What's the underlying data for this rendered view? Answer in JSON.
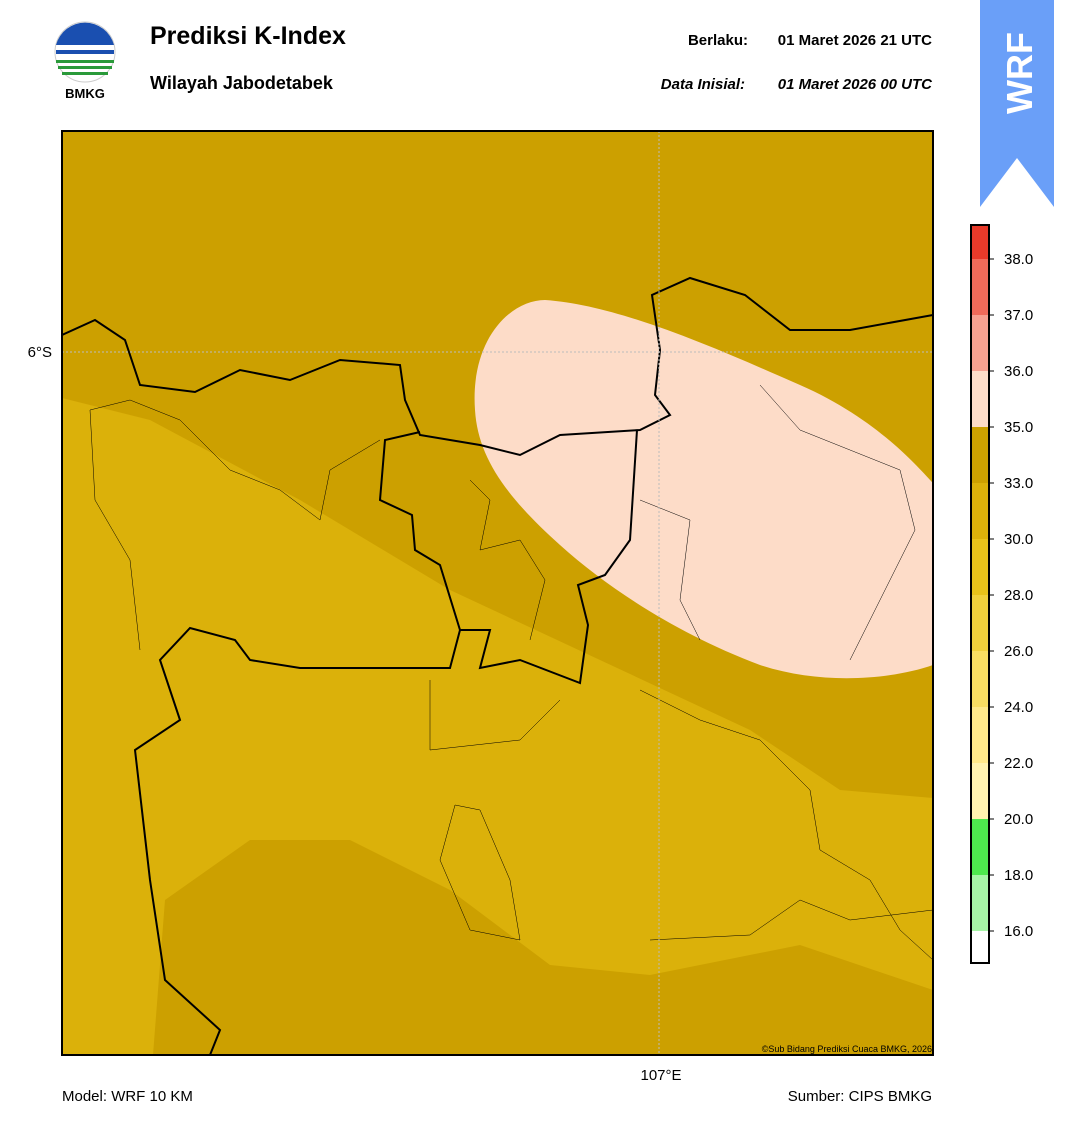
{
  "header": {
    "title": "Prediksi K-Index",
    "subtitle": "Wilayah Jabodetabek",
    "logo_text": "BMKG",
    "valid_label": "Berlaku:",
    "valid_time": "01 Maret 2026 21 UTC",
    "init_label": "Data Inisial:",
    "init_time": "01 Maret 2026 00 UTC",
    "badge": "WRF"
  },
  "map": {
    "lat_label": "6°S",
    "lon_label": "107°E",
    "copyright": "©Sub Bidang Prediksi Cuaca BMKG, 2026"
  },
  "colorbar": {
    "ticks": [
      {
        "value": 16,
        "label": "16.0"
      },
      {
        "value": 18,
        "label": "18.0"
      },
      {
        "value": 20,
        "label": "20.0"
      },
      {
        "value": 22,
        "label": "22.0"
      },
      {
        "value": 24,
        "label": "24.0"
      },
      {
        "value": 26,
        "label": "26.0"
      },
      {
        "value": 28,
        "label": "28.0"
      },
      {
        "value": 30,
        "label": "30.0"
      },
      {
        "value": 33,
        "label": "33.0"
      },
      {
        "value": 35,
        "label": "35.0"
      },
      {
        "value": 36,
        "label": "36.0"
      },
      {
        "value": 37,
        "label": "37.0"
      },
      {
        "value": 38,
        "label": "38.0"
      }
    ],
    "colors": [
      "#ffffff",
      "#a6f5a6",
      "#4ee84e",
      "#fff3b0",
      "#ffe98a",
      "#f8dd62",
      "#f0d03c",
      "#e8c21a",
      "#dbb10a",
      "#cca000",
      "#fddcc8",
      "#f7a090",
      "#f06a5a",
      "#e83a2a"
    ]
  },
  "footer": {
    "model": "Model: WRF 10 KM",
    "source": "Sumber: CIPS BMKG"
  }
}
